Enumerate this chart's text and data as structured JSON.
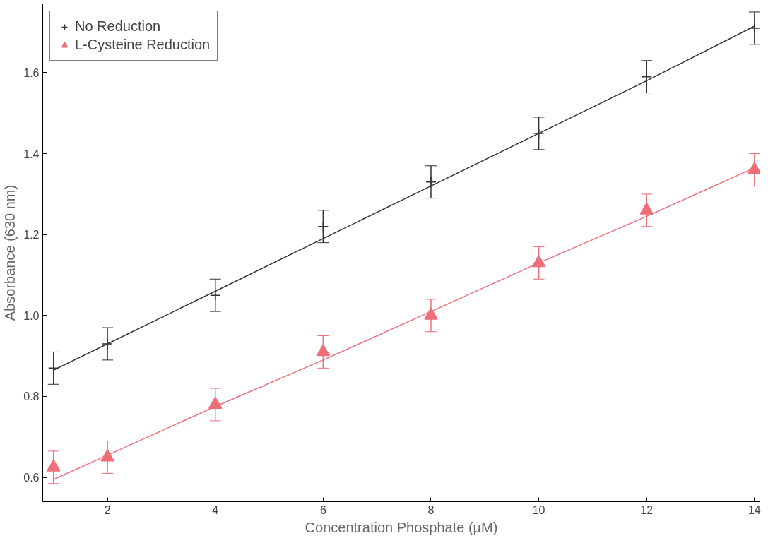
{
  "chart_data": {
    "type": "scatter",
    "xlabel": "Concentration Phosphate (µM)",
    "ylabel": "Absorbance (630 nm)",
    "x": [
      1,
      2,
      4,
      6,
      8,
      10,
      12,
      14
    ],
    "series": [
      {
        "name": "No Reduction",
        "color": "#333333",
        "marker": "cross",
        "values": [
          0.87,
          0.93,
          1.05,
          1.22,
          1.33,
          1.45,
          1.59,
          1.71
        ],
        "errors": [
          0.04,
          0.04,
          0.04,
          0.04,
          0.04,
          0.04,
          0.04,
          0.04
        ]
      },
      {
        "name": "L-Cysteine Reduction",
        "color": "#f06e78",
        "marker": "triangle",
        "values": [
          0.625,
          0.65,
          0.78,
          0.91,
          1.0,
          1.13,
          1.26,
          1.36
        ],
        "errors": [
          0.04,
          0.04,
          0.04,
          0.04,
          0.04,
          0.04,
          0.04,
          0.04
        ]
      },
      {
        "type": "line",
        "color": "#333333",
        "values": [
          0.865,
          0.93,
          1.06,
          1.19,
          1.32,
          1.45,
          1.58,
          1.715
        ]
      },
      {
        "type": "line",
        "color": "#f06e78",
        "values": [
          0.595,
          0.655,
          0.775,
          0.89,
          1.01,
          1.13,
          1.245,
          1.365
        ]
      }
    ],
    "xlim": [
      0.8,
      14.1
    ],
    "ylim": [
      0.54,
      1.77
    ],
    "xticks": [
      2,
      4,
      6,
      8,
      10,
      12,
      14
    ],
    "yticks": [
      0.6,
      0.8,
      {
        "value": 1.0,
        "label": "1.0"
      },
      1.2,
      1.4,
      1.6
    ],
    "grid": false,
    "legend": "top left"
  }
}
